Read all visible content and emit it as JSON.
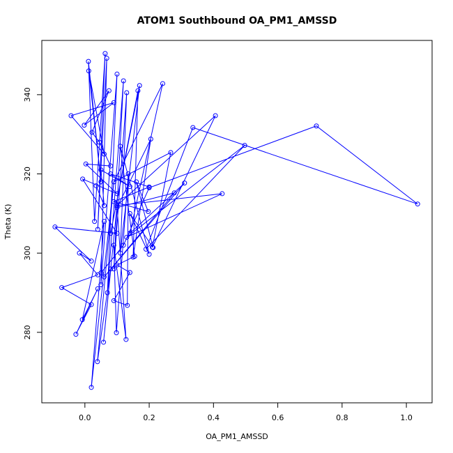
{
  "chart_data": {
    "type": "line",
    "title": "ATOM1 Southbound OA_PM1_AMSSD",
    "x_label": "OA_PM1_AMSSD",
    "y_label": "Theta (K)",
    "color": "#0000ff",
    "markers": true,
    "x": [
      0.05,
      0.12,
      0.2,
      0.72,
      1.035,
      0.336,
      0.19,
      0.497,
      0.13,
      0.427,
      0.1,
      0.406,
      0.21,
      0.267,
      0.09,
      0.242,
      0.14,
      0.31,
      0.06,
      0.278,
      0.1,
      0.205,
      0.15,
      0.165,
      0.08,
      0.17,
      0.11,
      0.13,
      0.09,
      0.12,
      0.07,
      0.1,
      0.05,
      0.068,
      0.04,
      0.063,
      0.03,
      0.011,
      0.05,
      0.012,
      0.06,
      -0.043,
      0.09,
      -0.002,
      0.075,
      0.022,
      0.045,
      0.08,
      0.003,
      0.1,
      -0.007,
      0.1,
      -0.093,
      0.02,
      -0.017,
      0.04,
      -0.072,
      0.02,
      -0.028,
      0.04,
      -0.008,
      0.06,
      0.02,
      0.09,
      0.039,
      0.08,
      0.058,
      0.1,
      0.128,
      0.09,
      0.098,
      0.135,
      0.132,
      0.09,
      0.14,
      0.1,
      0.155,
      0.11,
      0.2,
      0.14,
      0.212,
      0.16,
      0.197,
      0.09,
      0.2,
      0.08,
      0.14,
      0.05,
      0.06,
      0.035
    ],
    "values": [
      295,
      302,
      316.5,
      332.1,
      312.4,
      331.7,
      301,
      327.2,
      304,
      315.0,
      312,
      334.7,
      301.5,
      325.4,
      318,
      342.8,
      305,
      317.7,
      294,
      315.2,
      311.5,
      328.8,
      299,
      341,
      305,
      342.3,
      300,
      340.5,
      296,
      343.5,
      290,
      345.2,
      292,
      349.2,
      306,
      350.4,
      308,
      348.4,
      318,
      346,
      325,
      334.7,
      338,
      332.3,
      341,
      330.5,
      328,
      322,
      322.5,
      315,
      318.7,
      305,
      306.6,
      298,
      300,
      294.5,
      291.3,
      287,
      279.5,
      291,
      283.2,
      308,
      266.1,
      318,
      272.6,
      296,
      277.5,
      312,
      278.2,
      302,
      279.9,
      320,
      286.8,
      288,
      295.1,
      297,
      299.2,
      327,
      299.7,
      310,
      301.4,
      318,
      310.5,
      313,
      316.7,
      320,
      316.8,
      321,
      312,
      317
    ],
    "xlim": [
      -0.134,
      1.08
    ],
    "ylim": [
      262.2,
      353.7
    ],
    "xticks": [
      {
        "value": 0,
        "label": "0.0"
      },
      {
        "value": 0.2,
        "label": "0.2"
      },
      {
        "value": 0.4,
        "label": "0.4"
      },
      {
        "value": 0.6,
        "label": "0.6"
      },
      {
        "value": 0.8,
        "label": "0.8"
      },
      {
        "value": 1,
        "label": "1.0"
      }
    ],
    "yticks": [
      280,
      300,
      320,
      340
    ]
  }
}
